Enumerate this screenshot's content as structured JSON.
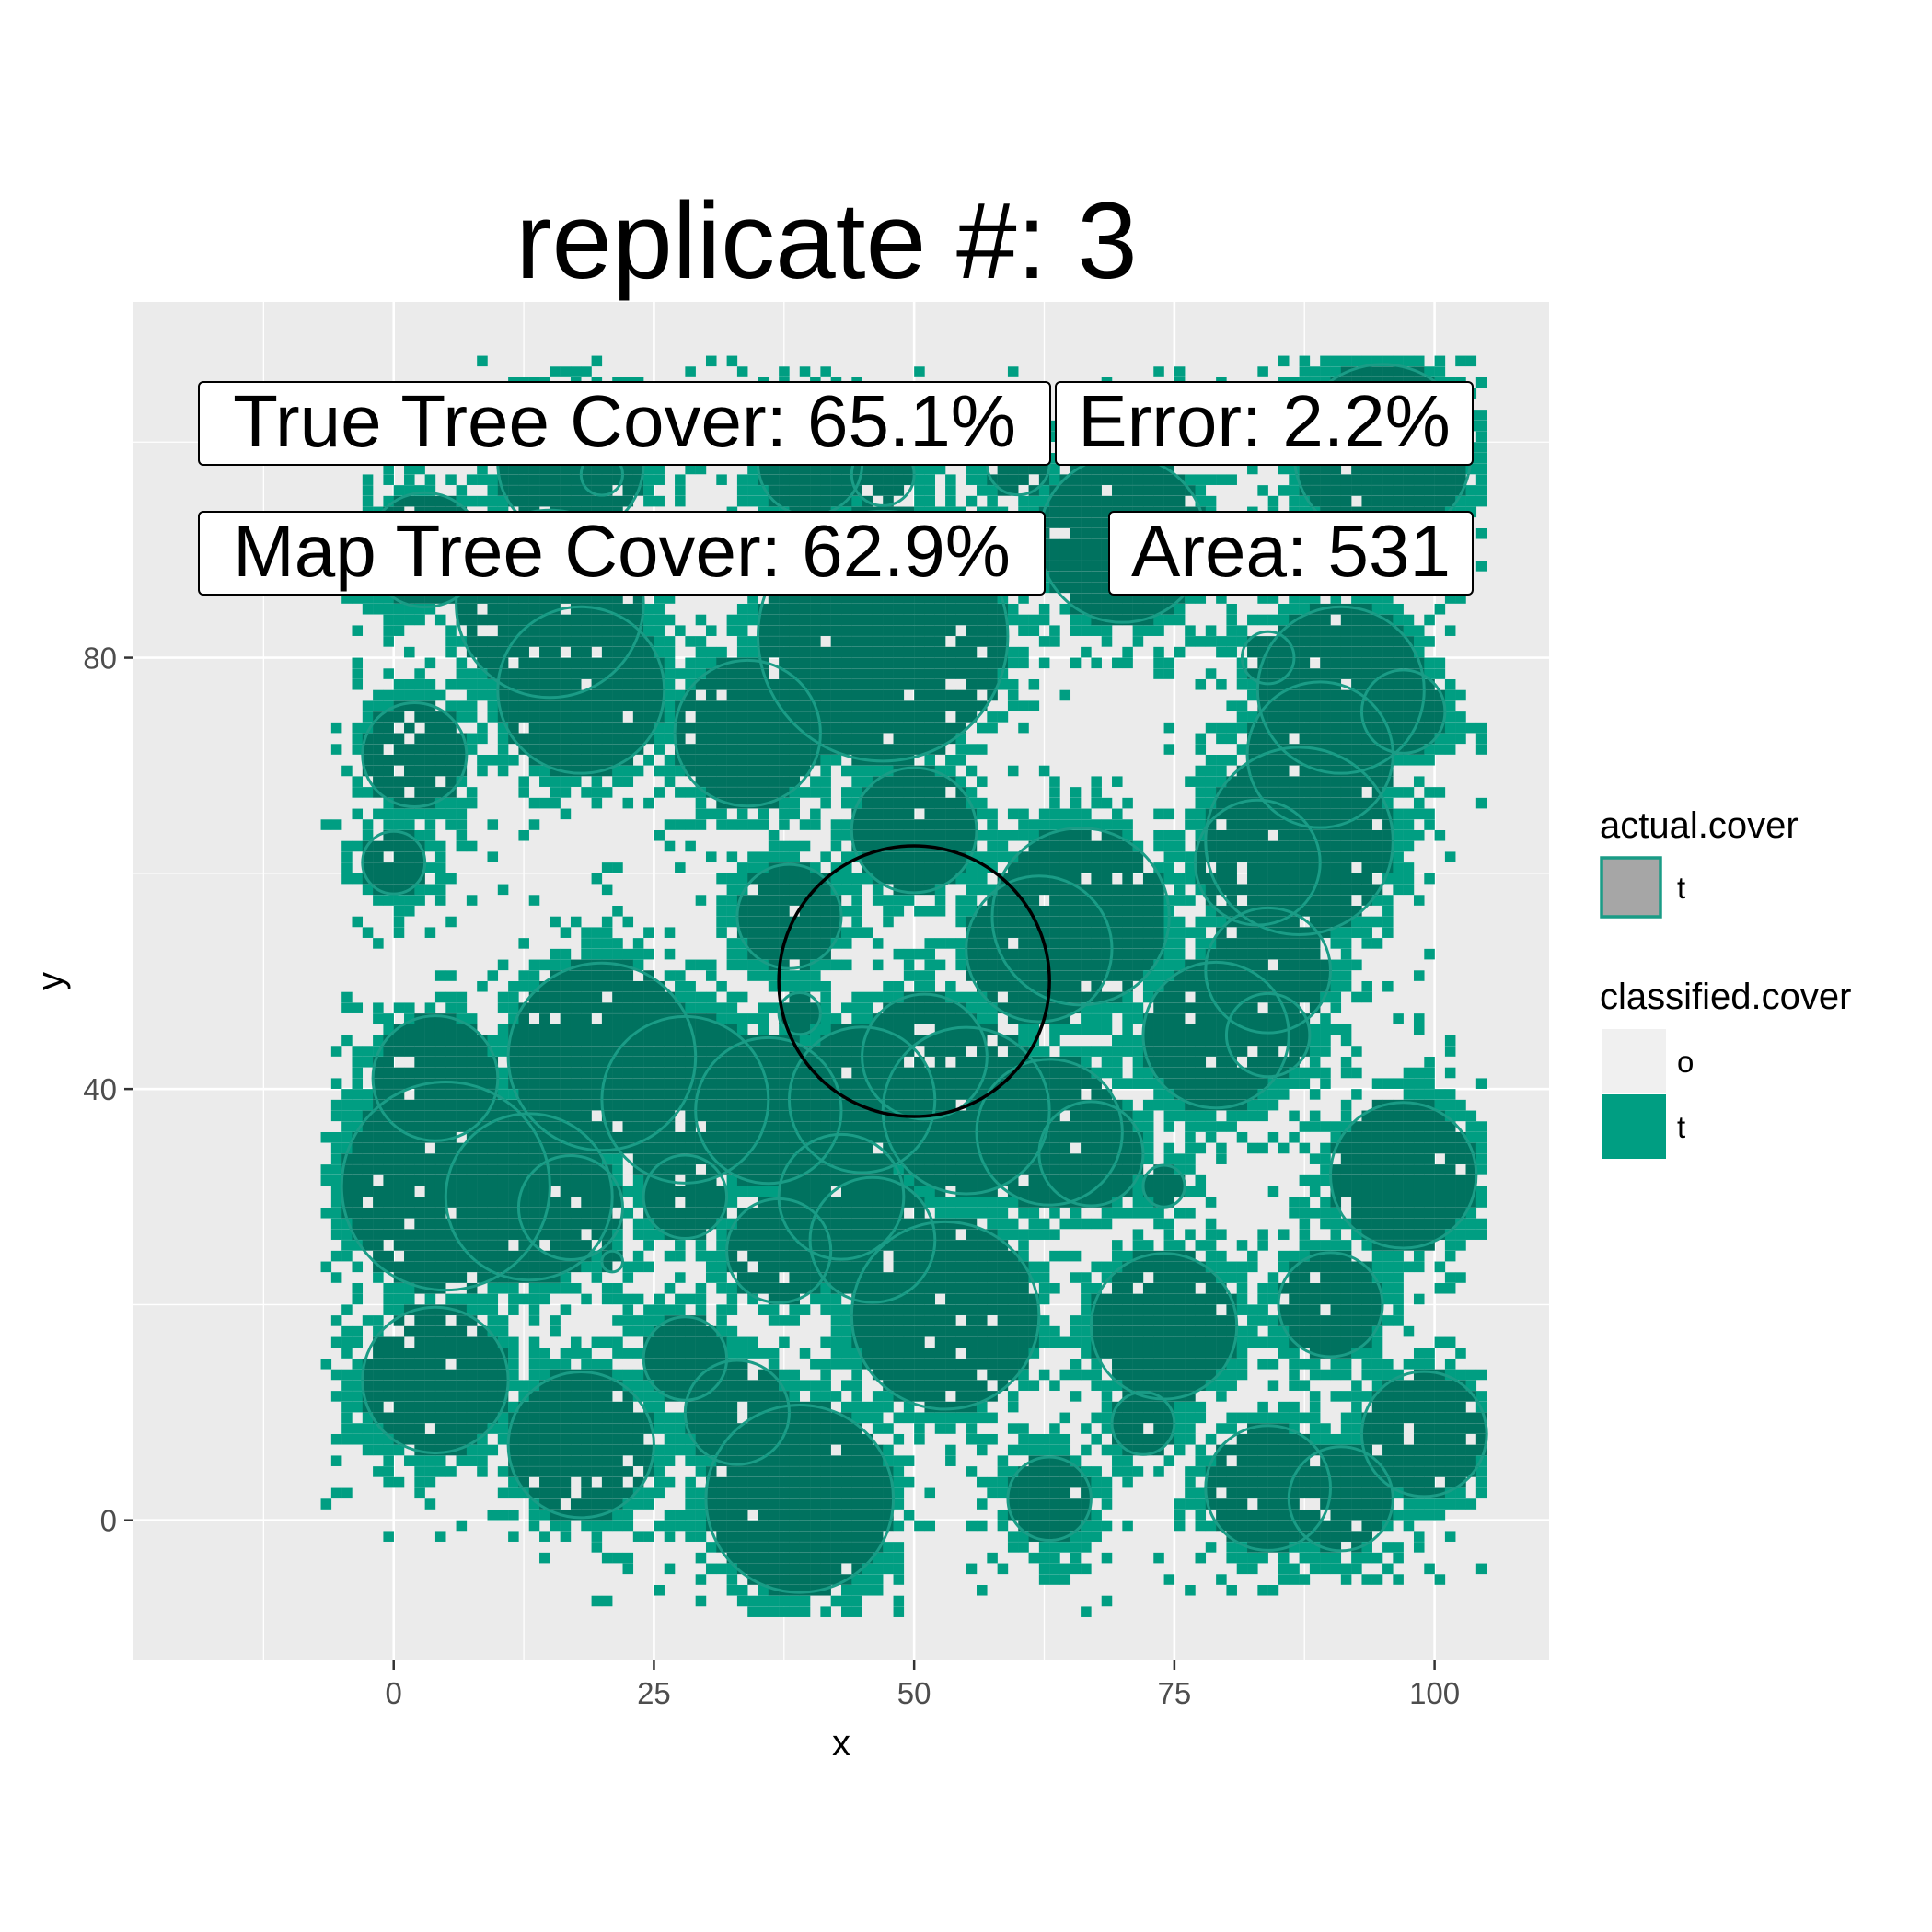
{
  "chart_data": {
    "type": "heatmap",
    "title": "replicate #: 3",
    "xlabel": "x",
    "ylabel": "y",
    "xlim": [
      -25,
      111
    ],
    "ylim": [
      -13,
      113
    ],
    "x_ticks": [
      0,
      25,
      50,
      75,
      100
    ],
    "y_ticks": [
      0,
      40,
      80
    ],
    "grid": true,
    "legend_position": "right",
    "legends": [
      {
        "title": "actual.cover",
        "entries": [
          {
            "label": "t",
            "fill": "#a6a6a6",
            "outline": "#1a9c86"
          }
        ]
      },
      {
        "title": "classified.cover",
        "entries": [
          {
            "label": "o",
            "fill": "#f0f0f0"
          },
          {
            "label": "t",
            "fill": "#009e82"
          }
        ]
      }
    ],
    "annotations": [
      {
        "text": "True Tree Cover: 65.1%",
        "x": 26,
        "y": 102
      },
      {
        "text": "Error: 2.2%",
        "x": 85,
        "y": 102
      },
      {
        "text": "Map Tree Cover: 62.9%",
        "x": 26,
        "y": 90
      },
      {
        "text": "Area: 531",
        "x": 85,
        "y": 90
      }
    ],
    "plot_circle": {
      "x": 50,
      "y": 50,
      "r": 13
    },
    "colors": {
      "classified_tree": "#009e82",
      "overlap_tree": "#00725f",
      "actual_tree_only": "#a6a6a6",
      "actual_outline": "#1a9c86",
      "panel_background": "#ebebeb",
      "grid": "#ffffff",
      "open_cell": "#f0f0f0"
    },
    "tree_crowns": [
      [
        17,
        98,
        7
      ],
      [
        20,
        97,
        2
      ],
      [
        3,
        90,
        5.5
      ],
      [
        40,
        98,
        5
      ],
      [
        47,
        97,
        3
      ],
      [
        60,
        98,
        3
      ],
      [
        70,
        91,
        8
      ],
      [
        95,
        99,
        8.5
      ],
      [
        15,
        85,
        9
      ],
      [
        18,
        77,
        8
      ],
      [
        34,
        73,
        7
      ],
      [
        47,
        82,
        12
      ],
      [
        50,
        64,
        6
      ],
      [
        2,
        71,
        5
      ],
      [
        0,
        61,
        3
      ],
      [
        84,
        80,
        2.5
      ],
      [
        91,
        77,
        8
      ],
      [
        97,
        75,
        4
      ],
      [
        89,
        71,
        7
      ],
      [
        87,
        63,
        9
      ],
      [
        83,
        61,
        6
      ],
      [
        66,
        56,
        8.5
      ],
      [
        62,
        53,
        7
      ],
      [
        38,
        56,
        5
      ],
      [
        39,
        47,
        2
      ],
      [
        84,
        51,
        6
      ],
      [
        79,
        45,
        7
      ],
      [
        84,
        45,
        4
      ],
      [
        20,
        43,
        9
      ],
      [
        4,
        41,
        6
      ],
      [
        28,
        39,
        8
      ],
      [
        36,
        38,
        7
      ],
      [
        45,
        39,
        7
      ],
      [
        51,
        43,
        6
      ],
      [
        55,
        38,
        8
      ],
      [
        63,
        36,
        7
      ],
      [
        67,
        34,
        5
      ],
      [
        74,
        31,
        2
      ],
      [
        5,
        31,
        10
      ],
      [
        13,
        30,
        8
      ],
      [
        17,
        29,
        5
      ],
      [
        21,
        24,
        1
      ],
      [
        28,
        30,
        4
      ],
      [
        43,
        30,
        6
      ],
      [
        37,
        25,
        5
      ],
      [
        46,
        26,
        6
      ],
      [
        53,
        19,
        9
      ],
      [
        74,
        18,
        7
      ],
      [
        72,
        9,
        3
      ],
      [
        4,
        13,
        7
      ],
      [
        18,
        7,
        7
      ],
      [
        28,
        15,
        4
      ],
      [
        33,
        10,
        5
      ],
      [
        39,
        2,
        9
      ],
      [
        63,
        2,
        4
      ],
      [
        84,
        3,
        6
      ],
      [
        91,
        2,
        5
      ],
      [
        97,
        32,
        7
      ],
      [
        90,
        20,
        5
      ],
      [
        99,
        8,
        6
      ]
    ]
  }
}
